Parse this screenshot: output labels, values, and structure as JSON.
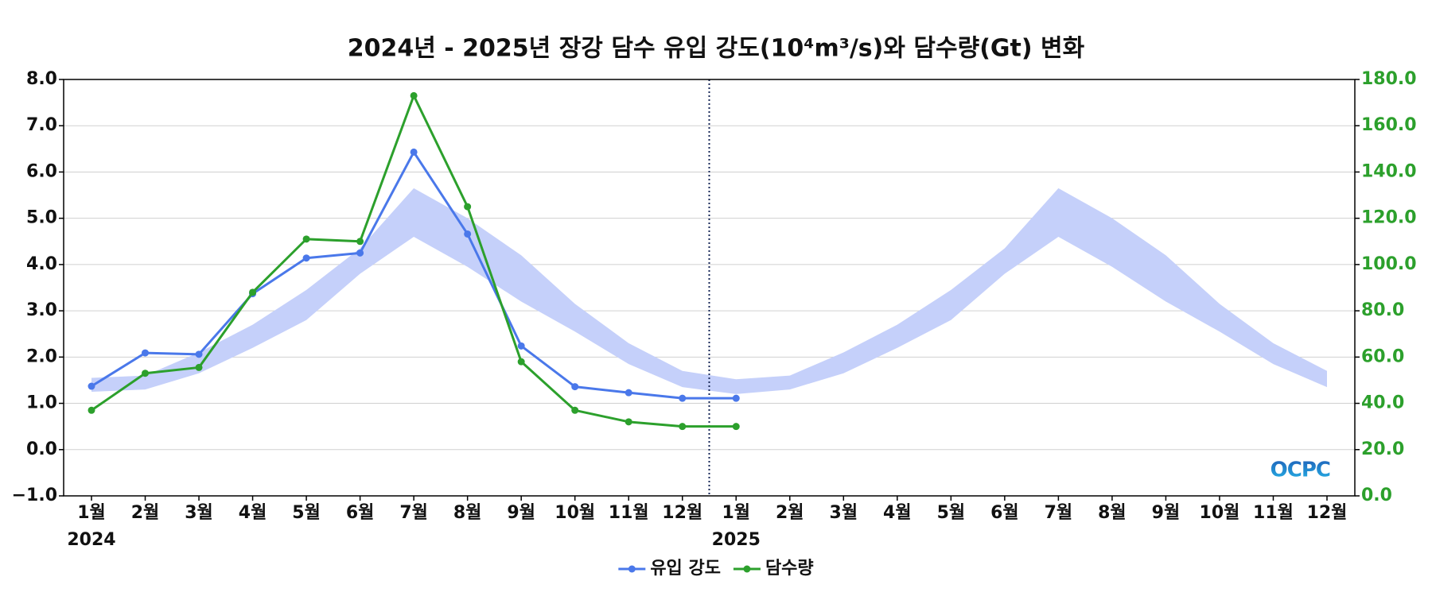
{
  "chart_data": {
    "type": "line",
    "title": "2024년 - 2025년 장강 담수 유입 강도(10⁴m³/s)와 담수량(Gt) 변화",
    "categories": [
      "1월",
      "2월",
      "3월",
      "4월",
      "5월",
      "6월",
      "7월",
      "8월",
      "9월",
      "10월",
      "11월",
      "12월",
      "1월",
      "2월",
      "3월",
      "4월",
      "5월",
      "6월",
      "7월",
      "8월",
      "9월",
      "10월",
      "11월",
      "12월"
    ],
    "year_labels": [
      "2024",
      null,
      null,
      null,
      null,
      null,
      null,
      null,
      null,
      null,
      null,
      null,
      "2025",
      null,
      null,
      null,
      null,
      null,
      null,
      null,
      null,
      null,
      null,
      null
    ],
    "series": [
      {
        "name": "유입 강도",
        "color": "#4a78ea",
        "values": [
          1.37,
          2.09,
          2.06,
          3.37,
          4.14,
          4.25,
          6.43,
          4.66,
          2.24,
          1.36,
          1.23,
          1.11,
          1.11,
          null,
          null,
          null,
          null,
          null,
          null,
          null,
          null,
          null,
          null,
          null
        ]
      },
      {
        "name": "담수량",
        "color": "#2ca02c",
        "axis": "y2",
        "values": [
          37,
          53,
          55.5,
          88,
          111,
          110,
          173,
          125,
          58,
          37,
          32,
          30,
          30,
          null,
          null,
          null,
          null,
          null,
          null,
          null,
          null,
          null,
          null,
          null
        ]
      }
    ],
    "band": {
      "color": "#c5d0fa",
      "upper": [
        1.55,
        1.6,
        2.1,
        2.7,
        3.45,
        4.35,
        5.65,
        5.0,
        4.2,
        3.15,
        2.3,
        1.7,
        1.52,
        1.6,
        2.1,
        2.7,
        3.45,
        4.35,
        5.65,
        5.0,
        4.2,
        3.15,
        2.3,
        1.7
      ],
      "lower": [
        1.25,
        1.3,
        1.65,
        2.2,
        2.8,
        3.8,
        4.6,
        3.95,
        3.2,
        2.55,
        1.85,
        1.35,
        1.2,
        1.3,
        1.65,
        2.2,
        2.8,
        3.8,
        4.6,
        3.95,
        3.2,
        2.55,
        1.85,
        1.35
      ]
    },
    "ylim": [
      -1,
      8
    ],
    "yticks": [
      {
        "value": -1,
        "label": "−1.0"
      },
      {
        "value": 0,
        "label": "0.0"
      },
      {
        "value": 1,
        "label": "1.0"
      },
      {
        "value": 2,
        "label": "2.0"
      },
      {
        "value": 3,
        "label": "3.0"
      },
      {
        "value": 4,
        "label": "4.0"
      },
      {
        "value": 5,
        "label": "5.0"
      },
      {
        "value": 6,
        "label": "6.0"
      },
      {
        "value": 7,
        "label": "7.0"
      },
      {
        "value": 8,
        "label": "8.0"
      }
    ],
    "y2lim": [
      0,
      180
    ],
    "y2ticks": [
      {
        "value": 0,
        "label": "0.0"
      },
      {
        "value": 20,
        "label": "20.0"
      },
      {
        "value": 40,
        "label": "40.0"
      },
      {
        "value": 60,
        "label": "60.0"
      },
      {
        "value": 80,
        "label": "80.0"
      },
      {
        "value": 100,
        "label": "100.0"
      },
      {
        "value": 120,
        "label": "120.0"
      },
      {
        "value": 140,
        "label": "140.0"
      },
      {
        "value": 160,
        "label": "160.0"
      },
      {
        "value": 180,
        "label": "180.0"
      }
    ],
    "y2color": "#2ca02c",
    "grid": true,
    "legend": "bottom",
    "logo": "OCPC"
  }
}
